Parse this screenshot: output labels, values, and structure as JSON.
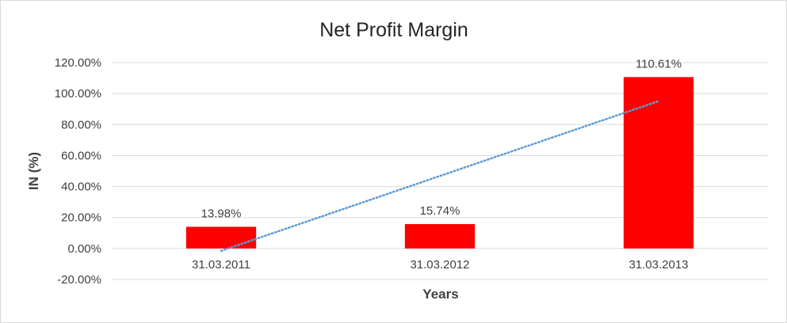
{
  "chart_data": {
    "type": "bar",
    "title": "Net Profit Margin",
    "xlabel": "Years",
    "ylabel": "IN (%)",
    "categories": [
      "31.03.2011",
      "31.03.2012",
      "31.03.2013"
    ],
    "series": [
      {
        "values": [
          13.98,
          15.74,
          110.61
        ],
        "data_labels": [
          "13.98%",
          "15.74%",
          "110.61%"
        ],
        "color": "#ff0000"
      }
    ],
    "trendline": {
      "type": "linear",
      "style": "dotted",
      "color": "#5b9bd5"
    },
    "ylim": [
      -20,
      120
    ],
    "yticks": [
      -20,
      0,
      20,
      40,
      60,
      80,
      100,
      120
    ],
    "ytick_labels": [
      "-20.00%",
      "0.00%",
      "20.00%",
      "40.00%",
      "60.00%",
      "80.00%",
      "100.00%",
      "120.00%"
    ],
    "grid": true,
    "legend": "none",
    "colors": {
      "gridline": "#d9d9d9",
      "text": "#404040"
    }
  }
}
